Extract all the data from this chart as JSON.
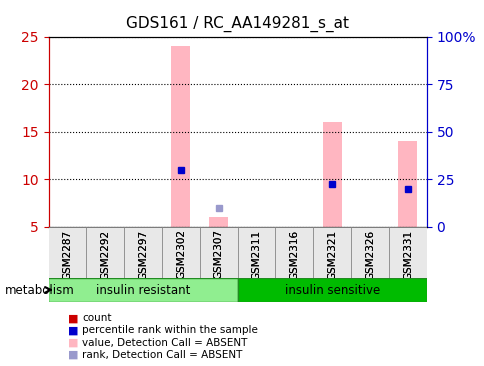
{
  "title": "GDS161 / RC_AA149281_s_at",
  "samples": [
    "GSM2287",
    "GSM2292",
    "GSM2297",
    "GSM2302",
    "GSM2307",
    "GSM2311",
    "GSM2316",
    "GSM2321",
    "GSM2326",
    "GSM2331"
  ],
  "groups": [
    {
      "label": "insulin resistant",
      "color": "#90EE90",
      "indices": [
        0,
        4
      ]
    },
    {
      "label": "insulin sensitive",
      "color": "#00CC00",
      "indices": [
        5,
        9
      ]
    }
  ],
  "bar_values": [
    null,
    null,
    null,
    24.0,
    6.0,
    null,
    null,
    16.0,
    null,
    14.0
  ],
  "rank_dots": [
    null,
    null,
    null,
    11.0,
    null,
    null,
    null,
    9.5,
    null,
    9.0
  ],
  "absent_rank_dots": [
    null,
    null,
    null,
    null,
    7.0,
    null,
    null,
    null,
    null,
    null
  ],
  "ylim_left": [
    5,
    25
  ],
  "ylim_right": [
    0,
    100
  ],
  "yticks_left": [
    5,
    10,
    15,
    20,
    25
  ],
  "yticks_right": [
    0,
    25,
    50,
    75,
    100
  ],
  "yticklabels_right": [
    "0",
    "25",
    "50",
    "75",
    "100%"
  ],
  "left_tick_color": "#CC0000",
  "right_tick_color": "#0000CC",
  "bar_color": "#FFB6C1",
  "rank_dot_color": "#0000CC",
  "absent_bar_color": "#FFB6C1",
  "absent_rank_dot_color": "#9999CC",
  "legend_items": [
    {
      "color": "#CC0000",
      "marker": "s",
      "label": "count"
    },
    {
      "color": "#0000CC",
      "marker": "s",
      "label": "percentile rank within the sample"
    },
    {
      "color": "#FFB6C1",
      "marker": "s",
      "label": "value, Detection Call = ABSENT"
    },
    {
      "color": "#9999CC",
      "marker": "s",
      "label": "rank, Detection Call = ABSENT"
    }
  ],
  "metabolism_label": "metabolism",
  "group_label_left": "insulin resistant",
  "group_label_right": "insulin sensitive"
}
